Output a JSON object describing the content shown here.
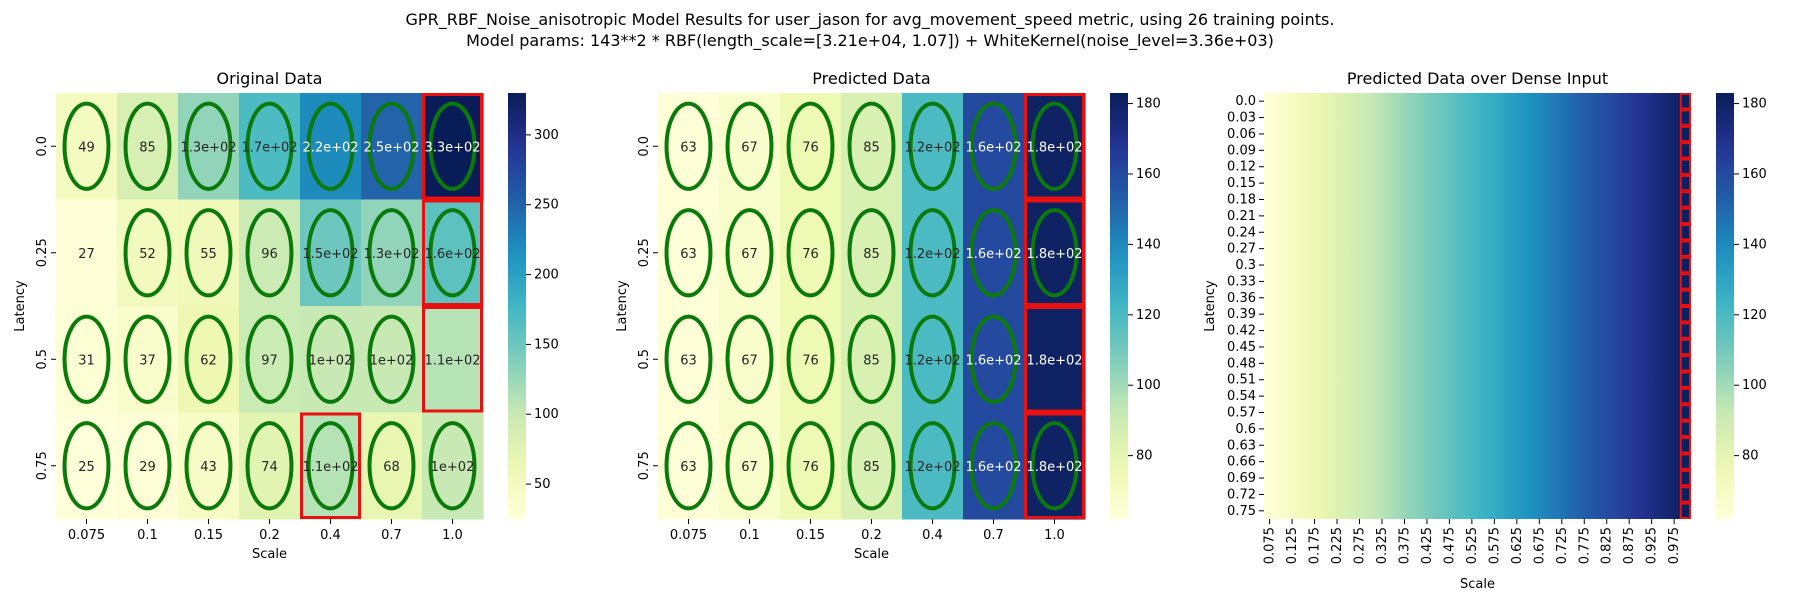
{
  "figure": {
    "title_line1": "GPR_RBF_Noise_anisotropic Model Results for user_jason for avg_movement_speed metric, using 26 training points.",
    "title_line2": "Model params: 143**2 * RBF(length_scale=[3.21e+04, 1.07]) + WhiteKernel(noise_level=3.36e+03)"
  },
  "chart_data": [
    {
      "type": "heatmap",
      "title": "Original Data",
      "xlabel": "Scale",
      "ylabel": "Latency",
      "x_categories": [
        "0.075",
        "0.1",
        "0.15",
        "0.2",
        "0.4",
        "0.7",
        "1.0"
      ],
      "y_categories": [
        "0.0",
        "0.25",
        "0.5",
        "0.75"
      ],
      "values": [
        [
          49,
          85,
          130,
          170,
          220,
          250,
          330
        ],
        [
          27,
          52,
          55,
          96,
          150,
          130,
          160
        ],
        [
          31,
          37,
          62,
          97,
          100,
          100,
          110
        ],
        [
          25,
          29,
          43,
          74,
          110,
          68,
          100
        ]
      ],
      "labels": [
        [
          "49",
          "85",
          "1.3e+02",
          "1.7e+02",
          "2.2e+02",
          "2.5e+02",
          "3.3e+02"
        ],
        [
          "27",
          "52",
          "55",
          "96",
          "1.5e+02",
          "1.3e+02",
          "1.6e+02"
        ],
        [
          "31",
          "37",
          "62",
          "97",
          "1e+02",
          "1e+02",
          "1.1e+02"
        ],
        [
          "25",
          "29",
          "43",
          "74",
          "1.1e+02",
          "68",
          "1e+02"
        ]
      ],
      "ellipses": [
        [
          true,
          true,
          true,
          true,
          true,
          true,
          true
        ],
        [
          false,
          true,
          true,
          true,
          true,
          true,
          true
        ],
        [
          true,
          true,
          true,
          true,
          true,
          true,
          false
        ],
        [
          true,
          true,
          true,
          true,
          true,
          true,
          true
        ]
      ],
      "red_boxes": [
        [
          0,
          6
        ],
        [
          1,
          6
        ],
        [
          2,
          6
        ],
        [
          3,
          4
        ]
      ],
      "colorbar": {
        "min": 25,
        "max": 330,
        "ticks": [
          50,
          100,
          150,
          200,
          250,
          300
        ]
      },
      "colormap": "YlGnBu"
    },
    {
      "type": "heatmap",
      "title": "Predicted Data",
      "xlabel": "Scale",
      "ylabel": "Latency",
      "x_categories": [
        "0.075",
        "0.1",
        "0.15",
        "0.2",
        "0.4",
        "0.7",
        "1.0"
      ],
      "y_categories": [
        "0.0",
        "0.25",
        "0.5",
        "0.75"
      ],
      "values": [
        [
          63,
          67,
          76,
          85,
          120,
          160,
          180
        ],
        [
          63,
          67,
          76,
          85,
          120,
          160,
          180
        ],
        [
          63,
          67,
          76,
          85,
          120,
          160,
          180
        ],
        [
          63,
          67,
          76,
          85,
          120,
          160,
          180
        ]
      ],
      "labels": [
        [
          "63",
          "67",
          "76",
          "85",
          "1.2e+02",
          "1.6e+02",
          "1.8e+02"
        ],
        [
          "63",
          "67",
          "76",
          "85",
          "1.2e+02",
          "1.6e+02",
          "1.8e+02"
        ],
        [
          "63",
          "67",
          "76",
          "85",
          "1.2e+02",
          "1.6e+02",
          "1.8e+02"
        ],
        [
          "63",
          "67",
          "76",
          "85",
          "1.2e+02",
          "1.6e+02",
          "1.8e+02"
        ]
      ],
      "ellipses": [
        [
          true,
          true,
          true,
          true,
          true,
          true,
          true
        ],
        [
          true,
          true,
          true,
          true,
          true,
          true,
          true
        ],
        [
          true,
          true,
          true,
          true,
          true,
          true,
          false
        ],
        [
          true,
          true,
          true,
          true,
          true,
          true,
          true
        ]
      ],
      "red_boxes": [
        [
          0,
          6
        ],
        [
          1,
          6
        ],
        [
          2,
          6
        ],
        [
          3,
          6
        ]
      ],
      "colorbar": {
        "min": 62,
        "max": 183,
        "ticks": [
          80,
          100,
          120,
          140,
          160,
          180
        ]
      },
      "colormap": "YlGnBu"
    },
    {
      "type": "heatmap",
      "title": "Predicted Data over Dense Input",
      "xlabel": "Scale",
      "ylabel": "Latency",
      "x_ticks": [
        "0.075",
        "0.125",
        "0.175",
        "0.225",
        "0.275",
        "0.325",
        "0.375",
        "0.425",
        "0.475",
        "0.525",
        "0.575",
        "0.625",
        "0.675",
        "0.725",
        "0.775",
        "0.825",
        "0.875",
        "0.925",
        "0.975"
      ],
      "y_ticks": [
        "0.0",
        "0.03",
        "0.06",
        "0.09",
        "0.12",
        "0.15",
        "0.18",
        "0.21",
        "0.24",
        "0.27",
        "0.3",
        "0.33",
        "0.36",
        "0.39",
        "0.42",
        "0.45",
        "0.48",
        "0.51",
        "0.54",
        "0.57",
        "0.6",
        "0.63",
        "0.66",
        "0.69",
        "0.72",
        "0.75"
      ],
      "x_range": [
        0.075,
        1.0
      ],
      "value_range_along_x": [
        62,
        183
      ],
      "red_box_column": "1.0",
      "colorbar": {
        "min": 62,
        "max": 183,
        "ticks": [
          80,
          100,
          120,
          140,
          160,
          180
        ]
      },
      "colormap": "YlGnBu"
    }
  ]
}
